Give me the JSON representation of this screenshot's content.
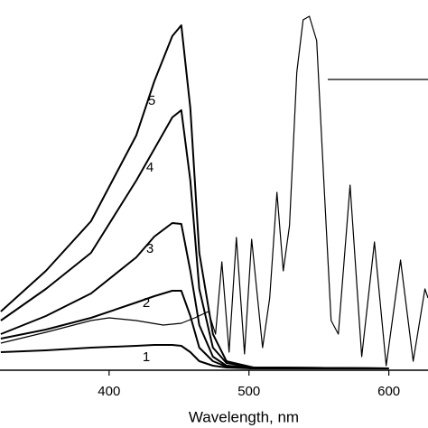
{
  "chart_data": {
    "type": "line",
    "x_label": "Wavelength, nm",
    "xlim": [
      322,
      628
    ],
    "ylim": [
      0,
      410
    ],
    "xticks": [
      400,
      500,
      600
    ],
    "series": [
      {
        "name": "1",
        "color": "#000000",
        "x": [
          322.6,
          354.8,
          387.1,
          419.4,
          432.3,
          445.2,
          451.6,
          458.1,
          464.5,
          474.2,
          483.9,
          503.2,
          600
        ],
        "values": [
          20,
          22,
          25,
          27,
          28,
          28,
          27,
          20,
          10,
          5,
          3,
          2,
          2
        ]
      },
      {
        "name": "2",
        "color": "#000000",
        "x": [
          322.6,
          354.8,
          387.1,
          419.4,
          432.3,
          445.2,
          451.6,
          458.1,
          464.5,
          474.2,
          483.9,
          503.2,
          600
        ],
        "values": [
          35,
          45,
          58,
          75,
          82,
          88,
          88,
          60,
          25,
          10,
          4,
          2,
          2
        ]
      },
      {
        "name": "3",
        "color": "#000000",
        "x": [
          322.6,
          354.8,
          387.1,
          419.4,
          432.3,
          445.2,
          451.6,
          458.1,
          464.5,
          474.2,
          483.9,
          503.2,
          600
        ],
        "values": [
          40,
          60,
          85,
          125,
          148,
          163,
          162,
          110,
          50,
          15,
          5,
          3,
          2
        ]
      },
      {
        "name": "4",
        "color": "#000000",
        "x": [
          322.6,
          354.8,
          387.1,
          419.4,
          432.3,
          445.2,
          451.6,
          458.1,
          464.5,
          474.2,
          483.9,
          503.2,
          600
        ],
        "values": [
          55,
          90,
          130,
          210,
          245,
          280,
          288,
          210,
          90,
          25,
          8,
          3,
          2
        ]
      },
      {
        "name": "5",
        "color": "#000000",
        "x": [
          322.6,
          354.8,
          387.1,
          419.4,
          432.3,
          445.2,
          451.6,
          458.1,
          464.5,
          474.2,
          483.9,
          503.2,
          600
        ],
        "values": [
          65,
          110,
          165,
          260,
          320,
          370,
          382,
          290,
          130,
          40,
          10,
          3,
          2
        ]
      },
      {
        "color": "#000000",
        "x": [
          322.6,
          354.8,
          387.1,
          400,
          419.4,
          438.7,
          451.6,
          461.3,
          471.0,
          476.1,
          480.6,
          485.8,
          491.0,
          496.8,
          501.9,
          509.7,
          514.8,
          520.0,
          524.5,
          529.0,
          534.2,
          538.7,
          543.2,
          548.4,
          553.5,
          558.7,
          563.9,
          572.3,
          580.6,
          589.7,
          598.1,
          608.4,
          617.4,
          625.8,
          628
        ],
        "values": [
          30,
          42,
          55,
          58,
          55,
          50,
          52,
          58,
          65,
          40,
          120,
          20,
          147,
          18,
          145,
          25,
          80,
          197,
          110,
          160,
          330,
          388,
          392,
          365,
          210,
          55,
          40,
          205,
          15,
          142,
          5,
          122,
          10,
          90,
          80
        ]
      }
    ]
  }
}
